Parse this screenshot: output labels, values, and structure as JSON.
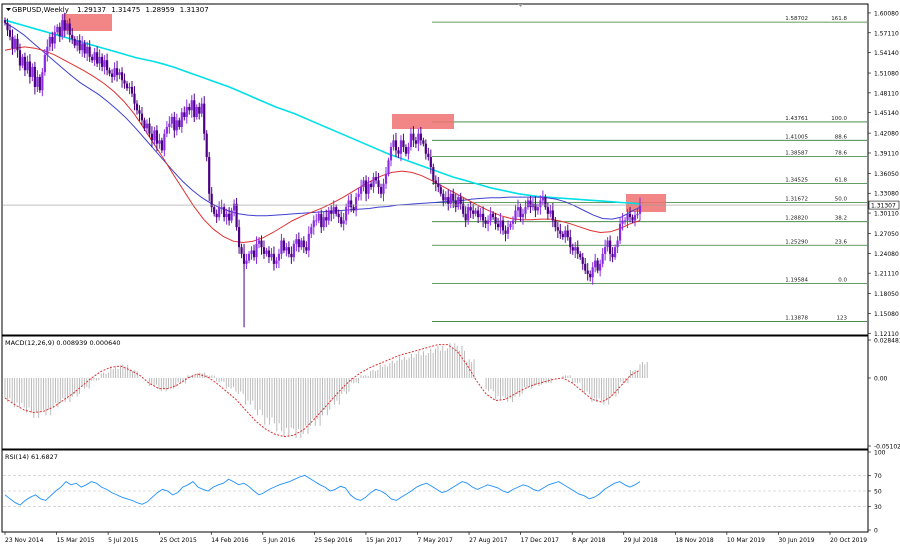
{
  "chart_data": {
    "type": "candlestick",
    "symbol_line": {
      "symbol": "GBPUSD,Weekly",
      "open": "1.29137",
      "high": "1.31475",
      "low": "1.28959",
      "close": "1.31307"
    },
    "price_axis": {
      "ticks": [
        "1.60080",
        "1.57110",
        "1.54140",
        "1.51080",
        "1.48110",
        "1.45140",
        "1.42080",
        "1.39110",
        "1.36050",
        "1.33080",
        "1.30110",
        "1.27050",
        "1.24080",
        "1.21110",
        "1.18050",
        "1.15080",
        "1.12110"
      ],
      "ylim": [
        1.12,
        1.6112
      ]
    },
    "current_price": "1.31307",
    "date_axis": [
      "23 Nov 2014",
      "15 Mar 2015",
      "5 Jul 2015",
      "25 Oct 2015",
      "14 Feb 2016",
      "5 Jun 2016",
      "25 Sep 2016",
      "15 Jan 2017",
      "7 May 2017",
      "27 Aug 2017",
      "17 Dec 2017",
      "8 Apr 2018",
      "29 Jul 2018",
      "18 Nov 2018",
      "10 Mar 2019",
      "30 Jun 2019",
      "20 Oct 2019"
    ],
    "fibonacci": [
      {
        "price": 1.58702,
        "label": "1.58702",
        "pct": "161.8"
      },
      {
        "price": 1.43761,
        "label": "1.43761",
        "pct": "100.0"
      },
      {
        "price": 1.41005,
        "label": "1.41005",
        "pct": "88.6"
      },
      {
        "price": 1.38587,
        "label": "1.38587",
        "pct": "78.6"
      },
      {
        "price": 1.34525,
        "label": "1.34525",
        "pct": "61.8"
      },
      {
        "price": 1.31672,
        "label": "1.31672",
        "pct": "50.0"
      },
      {
        "price": 1.2882,
        "label": "1.28820",
        "pct": "38.2"
      },
      {
        "price": 1.2529,
        "label": "1.25290",
        "pct": "23.6"
      },
      {
        "price": 1.19584,
        "label": "1.19584",
        "pct": "0.0"
      },
      {
        "price": 1.13878,
        "label": "1.13878",
        "pct": "123"
      }
    ],
    "close_series": [
      1.586,
      1.575,
      1.565,
      1.548,
      1.562,
      1.545,
      1.522,
      1.535,
      1.515,
      1.528,
      1.505,
      1.52,
      1.49,
      1.505,
      1.485,
      1.512,
      1.538,
      1.55,
      1.565,
      1.555,
      1.572,
      1.58,
      1.566,
      1.59,
      1.575,
      1.585,
      1.568,
      1.562,
      1.552,
      1.56,
      1.545,
      1.555,
      1.54,
      1.55,
      1.535,
      1.53,
      1.542,
      1.525,
      1.535,
      1.52,
      1.53,
      1.515,
      1.51,
      1.505,
      1.518,
      1.508,
      1.512,
      1.5,
      1.495,
      1.488,
      1.49,
      1.48,
      1.465,
      1.455,
      1.45,
      1.44,
      1.428,
      1.435,
      1.42,
      1.41,
      1.425,
      1.405,
      1.41,
      1.395,
      1.42,
      1.43,
      1.435,
      1.445,
      1.425,
      1.44,
      1.43,
      1.452,
      1.445,
      1.46,
      1.455,
      1.47,
      1.445,
      1.46,
      1.45,
      1.465,
      1.42,
      1.385,
      1.33,
      1.31,
      1.3,
      1.295,
      1.31,
      1.31,
      1.295,
      1.3,
      1.29,
      1.305,
      1.315,
      1.28,
      1.25,
      1.24,
      1.225,
      1.23,
      1.24,
      1.245,
      1.235,
      1.255,
      1.26,
      1.25,
      1.24,
      1.245,
      1.235,
      1.24,
      1.225,
      1.23,
      1.24,
      1.26,
      1.245,
      1.25,
      1.24,
      1.235,
      1.255,
      1.262,
      1.25,
      1.26,
      1.25,
      1.245,
      1.27,
      1.28,
      1.29,
      1.29,
      1.3,
      1.28,
      1.295,
      1.29,
      1.305,
      1.3,
      1.31,
      1.3,
      1.295,
      1.285,
      1.29,
      1.31,
      1.32,
      1.31,
      1.305,
      1.325,
      1.33,
      1.34,
      1.35,
      1.33,
      1.345,
      1.34,
      1.355,
      1.35,
      1.34,
      1.33,
      1.345,
      1.36,
      1.38,
      1.4,
      1.41,
      1.395,
      1.39,
      1.41,
      1.4,
      1.39,
      1.4,
      1.42,
      1.41,
      1.405,
      1.42,
      1.41,
      1.405,
      1.39,
      1.385,
      1.37,
      1.35,
      1.345,
      1.34,
      1.33,
      1.32,
      1.325,
      1.315,
      1.33,
      1.32,
      1.31,
      1.325,
      1.315,
      1.3,
      1.29,
      1.31,
      1.305,
      1.3,
      1.305,
      1.295,
      1.3,
      1.29,
      1.285,
      1.29,
      1.3,
      1.295,
      1.285,
      1.28,
      1.29,
      1.275,
      1.27,
      1.28,
      1.285,
      1.29,
      1.305,
      1.31,
      1.295,
      1.3,
      1.31,
      1.32,
      1.31,
      1.315,
      1.305,
      1.31,
      1.32,
      1.325,
      1.31,
      1.3,
      1.305,
      1.29,
      1.28,
      1.275,
      1.27,
      1.265,
      1.275,
      1.265,
      1.25,
      1.245,
      1.25,
      1.24,
      1.235,
      1.225,
      1.215,
      1.21,
      1.205,
      1.22,
      1.23,
      1.215,
      1.225,
      1.24,
      1.25,
      1.26,
      1.24,
      1.235,
      1.25,
      1.26,
      1.285,
      1.29,
      1.29,
      1.3,
      1.295,
      1.29,
      1.298,
      1.3,
      1.313
    ],
    "sma200_series": [
      1.59,
      1.586,
      1.582,
      1.578,
      1.574,
      1.57,
      1.566,
      1.562,
      1.558,
      1.554,
      1.55,
      1.546,
      1.542,
      1.538,
      1.534,
      1.531,
      1.528,
      1.524,
      1.52,
      1.515,
      1.51,
      1.505,
      1.5,
      1.495,
      1.49,
      1.484,
      1.478,
      1.472,
      1.466,
      1.46,
      1.455,
      1.45,
      1.444,
      1.438,
      1.432,
      1.426,
      1.42,
      1.414,
      1.408,
      1.402,
      1.396,
      1.39,
      1.385,
      1.38,
      1.375,
      1.37,
      1.365,
      1.36,
      1.355,
      1.351,
      1.347,
      1.343,
      1.339,
      1.336,
      1.333,
      1.33,
      1.328,
      1.326,
      1.325,
      1.324,
      1.323,
      1.322,
      1.321,
      1.32,
      1.319,
      1.318,
      1.317,
      1.316,
      1.315
    ],
    "sma100_series": [
      1.586,
      1.578,
      1.568,
      1.556,
      1.544,
      1.532,
      1.52,
      1.508,
      1.497,
      1.488,
      1.479,
      1.468,
      1.456,
      1.443,
      1.428,
      1.412,
      1.396,
      1.38,
      1.364,
      1.349,
      1.336,
      1.325,
      1.316,
      1.309,
      1.304,
      1.3,
      1.298,
      1.297,
      1.297,
      1.298,
      1.299,
      1.3,
      1.301,
      1.302,
      1.303,
      1.304,
      1.305,
      1.306,
      1.307,
      1.308,
      1.31,
      1.311,
      1.313,
      1.314,
      1.315,
      1.316,
      1.317,
      1.318,
      1.319,
      1.32,
      1.322,
      1.323,
      1.324,
      1.324,
      1.325,
      1.325,
      1.325,
      1.325,
      1.324,
      1.322,
      1.318,
      1.312,
      1.305,
      1.298,
      1.293,
      1.292,
      1.295,
      1.303,
      1.31
    ],
    "ema_series": [
      1.545,
      1.548,
      1.55,
      1.548,
      1.544,
      1.538,
      1.53,
      1.522,
      1.514,
      1.505,
      1.495,
      1.483,
      1.468,
      1.45,
      1.428,
      1.405,
      1.382,
      1.358,
      1.335,
      1.312,
      1.292,
      1.277,
      1.266,
      1.259,
      1.257,
      1.259,
      1.264,
      1.272,
      1.281,
      1.29,
      1.297,
      1.303,
      1.309,
      1.316,
      1.324,
      1.333,
      1.342,
      1.35,
      1.357,
      1.362,
      1.364,
      1.362,
      1.357,
      1.35,
      1.342,
      1.334,
      1.326,
      1.318,
      1.31,
      1.303,
      1.297,
      1.293,
      1.291,
      1.291,
      1.292,
      1.292,
      1.289,
      1.285,
      1.28,
      1.275,
      1.272,
      1.273,
      1.278,
      1.285,
      1.29
    ],
    "macd": {
      "label": "MACD(12,26,9) 0.008939 0.000640",
      "ticks": [
        "0.028481",
        "0.00",
        "-0.051025"
      ],
      "ylim": [
        -0.051025,
        0.028481
      ],
      "histogram": [
        -0.018,
        -0.022,
        -0.026,
        -0.03,
        -0.028,
        -0.022,
        -0.018,
        -0.014,
        -0.008,
        -0.002,
        0.004,
        0.008,
        0.01,
        0.006,
        0.0,
        -0.006,
        -0.01,
        -0.008,
        -0.004,
        0.002,
        0.004,
        0.002,
        -0.003,
        -0.008,
        -0.012,
        -0.02,
        -0.028,
        -0.035,
        -0.04,
        -0.044,
        -0.045,
        -0.042,
        -0.036,
        -0.028,
        -0.02,
        -0.012,
        -0.004,
        0.002,
        0.006,
        0.01,
        0.013,
        0.016,
        0.018,
        0.02,
        0.022,
        0.024,
        0.026,
        0.024,
        0.014,
        0.0,
        -0.01,
        -0.016,
        -0.018,
        -0.014,
        -0.008,
        -0.006,
        -0.004,
        0.0,
        0.002,
        -0.004,
        -0.012,
        -0.018,
        -0.02,
        -0.014,
        -0.004,
        0.006,
        0.012
      ],
      "signal": [
        -0.015,
        -0.02,
        -0.024,
        -0.026,
        -0.025,
        -0.022,
        -0.017,
        -0.012,
        -0.006,
        0.0,
        0.005,
        0.008,
        0.009,
        0.006,
        0.002,
        -0.004,
        -0.008,
        -0.008,
        -0.005,
        0.0,
        0.003,
        0.001,
        -0.004,
        -0.01,
        -0.016,
        -0.024,
        -0.032,
        -0.038,
        -0.042,
        -0.044,
        -0.043,
        -0.039,
        -0.032,
        -0.024,
        -0.016,
        -0.008,
        -0.001,
        0.004,
        0.008,
        0.011,
        0.014,
        0.017,
        0.019,
        0.021,
        0.023,
        0.025,
        0.025,
        0.02,
        0.01,
        -0.002,
        -0.012,
        -0.017,
        -0.016,
        -0.012,
        -0.008,
        -0.005,
        -0.003,
        -0.001,
        0.0,
        -0.004,
        -0.01,
        -0.016,
        -0.018,
        -0.014,
        -0.006,
        0.002,
        0.006
      ]
    },
    "rsi": {
      "label": "RSI(14) 61.6827",
      "ticks": [
        "100",
        "70",
        "50",
        "30",
        "0"
      ],
      "ylim": [
        0,
        100
      ],
      "values": [
        45,
        40,
        35,
        32,
        38,
        42,
        45,
        40,
        38,
        44,
        50,
        55,
        62,
        58,
        60,
        55,
        58,
        62,
        60,
        55,
        52,
        48,
        45,
        42,
        40,
        38,
        35,
        33,
        36,
        42,
        48,
        52,
        50,
        45,
        48,
        55,
        58,
        62,
        55,
        52,
        50,
        55,
        58,
        60,
        65,
        62,
        58,
        60,
        56,
        50,
        45,
        48,
        52,
        55,
        58,
        60,
        62,
        65,
        68,
        70,
        66,
        62,
        58,
        55,
        50,
        52,
        56,
        54,
        45,
        40,
        38,
        42,
        48,
        52,
        50,
        46,
        40,
        38,
        42,
        46,
        50,
        55,
        58,
        60,
        56,
        52,
        48,
        50,
        54,
        58,
        62,
        60,
        55,
        52,
        55,
        58,
        56,
        54,
        50,
        48,
        52,
        55,
        58,
        56,
        52,
        50,
        54,
        58,
        60,
        62,
        58,
        54,
        50,
        46,
        44,
        40,
        42,
        46,
        52,
        56,
        60,
        62,
        58,
        55,
        58,
        62
      ]
    }
  },
  "colors": {
    "bull_candle": "#8a2be2",
    "bear_candle": "#4b0082",
    "sma200": "#00e0e6",
    "sma100": "#4040d0",
    "ema": "#e03030",
    "fib_line": "#2e7d32",
    "highlight_box": "#f07070",
    "macd_hist": "#b4b4b4",
    "macd_signal": "#e03030",
    "rsi_line": "#1e90ff"
  }
}
